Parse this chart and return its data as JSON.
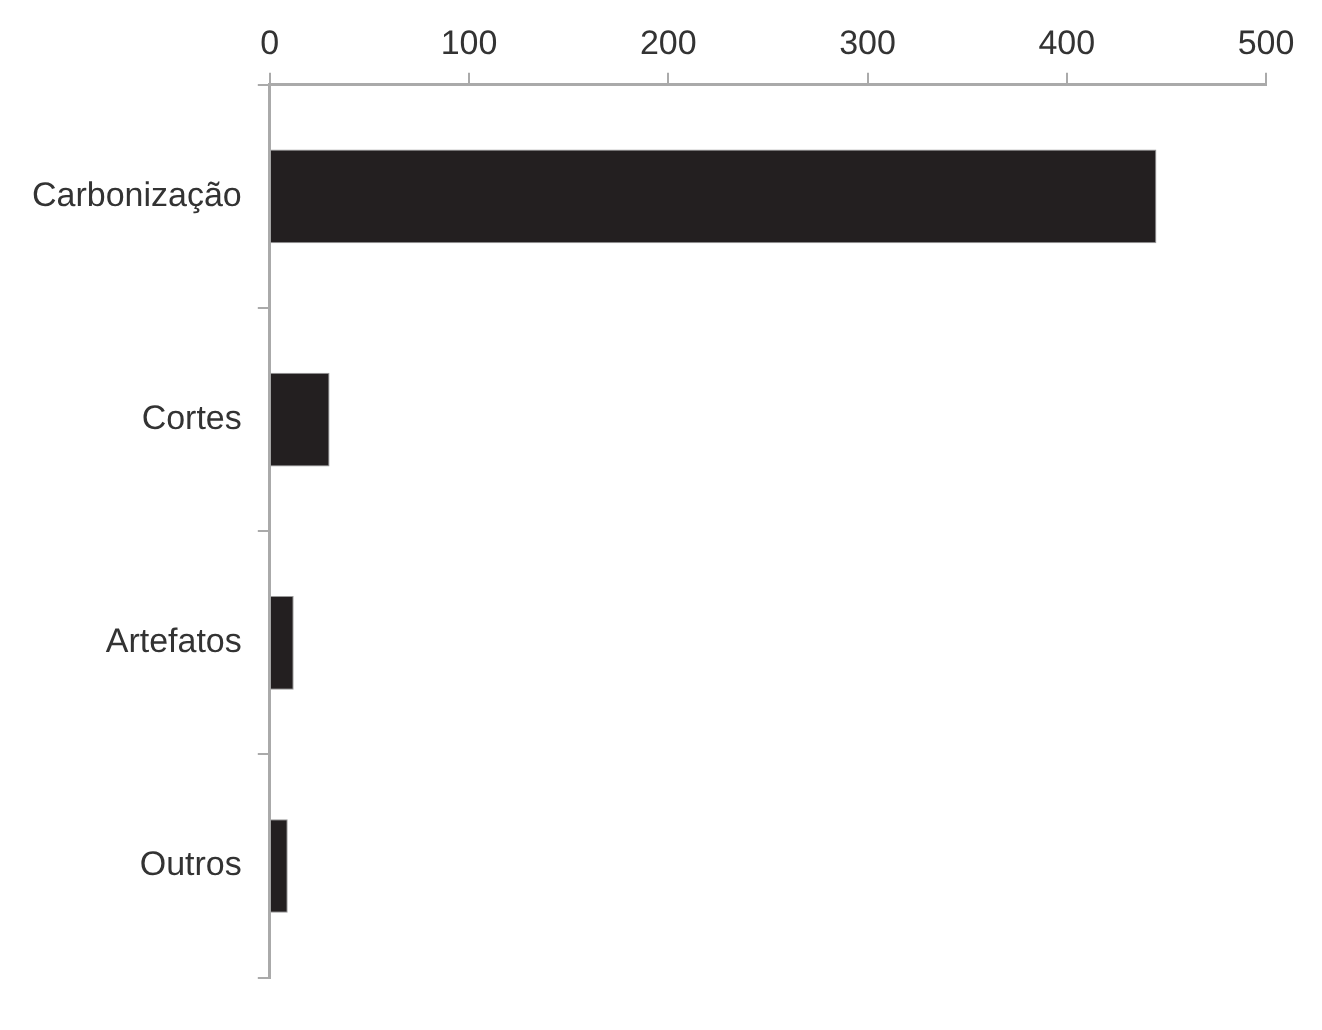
{
  "chart_data": {
    "type": "bar",
    "orientation": "horizontal",
    "categories": [
      "Carbonização",
      "Cortes",
      "Artefatos",
      "Outros"
    ],
    "values": [
      445,
      30,
      12,
      9
    ],
    "color": "#231f20",
    "xlim": [
      0,
      500
    ],
    "xticks": [
      0,
      100,
      200,
      300,
      400,
      500
    ],
    "grid": false,
    "legend": false
  }
}
